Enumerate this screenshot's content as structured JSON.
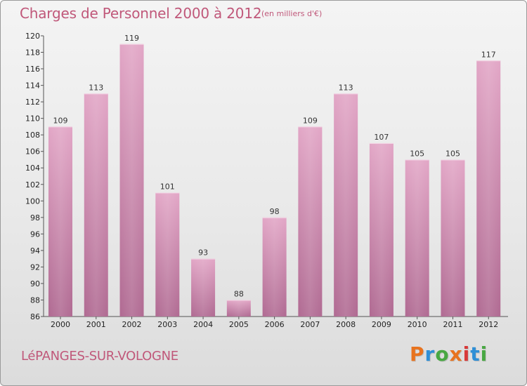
{
  "header": {
    "title": "Charges de Personnel 2000 à 2012",
    "subtitle": "(en milliers d'€)"
  },
  "footer": {
    "city": "LéPANGES-SUR-VOLOGNE",
    "logo_letters": [
      "P",
      "r",
      "o",
      "x",
      "i",
      "t",
      "i"
    ],
    "logo_colors": [
      "#e8731e",
      "#2f8fd6",
      "#49a843",
      "#e8731e",
      "#d83a3a",
      "#2f8fd6",
      "#49a843"
    ]
  },
  "chart_data": {
    "type": "bar",
    "title": "Charges de Personnel 2000 à 2012",
    "subtitle": "(en milliers d'€)",
    "categories": [
      "2000",
      "2001",
      "2002",
      "2003",
      "2004",
      "2005",
      "2006",
      "2007",
      "2008",
      "2009",
      "2010",
      "2011",
      "2012"
    ],
    "values": [
      109,
      113,
      119,
      101,
      93,
      88,
      98,
      109,
      113,
      107,
      105,
      105,
      117
    ],
    "data_labels": [
      "109",
      "113",
      "119",
      "101",
      "93",
      "88",
      "98",
      "109",
      "113",
      "107",
      "105",
      "105",
      "117"
    ],
    "ylim": [
      86,
      120
    ],
    "yticks": [
      86,
      88,
      90,
      92,
      94,
      96,
      98,
      100,
      102,
      104,
      106,
      108,
      110,
      112,
      114,
      116,
      118,
      120
    ],
    "ytick_labels": [
      "86",
      "88",
      "90",
      "92",
      "94",
      "96",
      "98",
      "100",
      "102",
      "104",
      "106",
      "108",
      "110",
      "112",
      "114",
      "116",
      "118",
      "120"
    ],
    "grid": false,
    "bar_color": "#d98bb3",
    "bar_color_dark": "#b06a90"
  }
}
